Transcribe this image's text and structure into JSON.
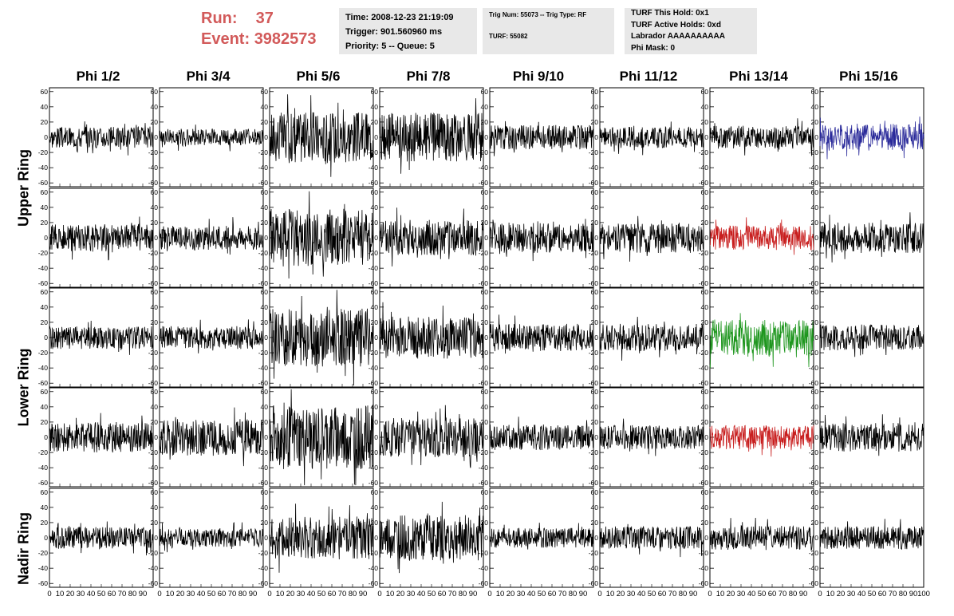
{
  "header": {
    "run_label": "Run:",
    "run_value": "37",
    "event_label": "Event:",
    "event_value": "3982573",
    "info1": [
      "Time: 2008-12-23 21:19:09",
      "Trigger: 901.560960 ms",
      "Priority: 5 -- Queue: 5"
    ],
    "info2": [
      "Trig Num: 55073 -- Trig Type: RF",
      "TURF: 55082"
    ],
    "info3": [
      "TURF This Hold: 0x1",
      "TURF Active Holds: 0xd",
      "Labrador AAAAAAAAAA",
      "Phi Mask: 0"
    ],
    "run_color": "#d25a5a",
    "info_bg": "#e8e8e8"
  },
  "columns": [
    "Phi 1/2",
    "Phi 3/4",
    "Phi 5/6",
    "Phi 7/8",
    "Phi 9/10",
    "Phi 11/12",
    "Phi 13/14",
    "Phi 15/16"
  ],
  "ring_labels": [
    "Upper Ring",
    "Lower Ring",
    "Nadir Ring"
  ],
  "chart_data": {
    "type": "line",
    "description_of_grid": "5 rows x 8 columns of waveform panels",
    "xlim": [
      0,
      100
    ],
    "ylim": [
      -65,
      65
    ],
    "y_ticks": [
      -60,
      -40,
      -20,
      0,
      20,
      40,
      60
    ],
    "x_ticks_labels": [
      "0",
      "10",
      "20",
      "30",
      "40",
      "50",
      "60",
      "70",
      "80",
      "90",
      "100"
    ],
    "samples_per_trace": 260,
    "trace_colors": {
      "default": "#000000",
      "blue": "#2a2a9a",
      "red": "#c81e1e",
      "green": "#1e961e"
    },
    "panels": [
      {
        "row": 0,
        "col": 0,
        "amp": 14,
        "color": "default"
      },
      {
        "row": 0,
        "col": 1,
        "amp": 11,
        "color": "default"
      },
      {
        "row": 0,
        "col": 2,
        "amp": 34,
        "color": "default"
      },
      {
        "row": 0,
        "col": 3,
        "amp": 32,
        "color": "default"
      },
      {
        "row": 0,
        "col": 4,
        "amp": 16,
        "color": "default"
      },
      {
        "row": 0,
        "col": 5,
        "amp": 14,
        "color": "default"
      },
      {
        "row": 0,
        "col": 6,
        "amp": 15,
        "color": "default"
      },
      {
        "row": 0,
        "col": 7,
        "amp": 18,
        "color": "blue"
      },
      {
        "row": 1,
        "col": 0,
        "amp": 18,
        "color": "default"
      },
      {
        "row": 1,
        "col": 1,
        "amp": 16,
        "color": "default"
      },
      {
        "row": 1,
        "col": 2,
        "amp": 38,
        "color": "default"
      },
      {
        "row": 1,
        "col": 3,
        "amp": 24,
        "color": "default"
      },
      {
        "row": 1,
        "col": 4,
        "amp": 20,
        "color": "default"
      },
      {
        "row": 1,
        "col": 5,
        "amp": 20,
        "color": "default"
      },
      {
        "row": 1,
        "col": 6,
        "amp": 16,
        "color": "red"
      },
      {
        "row": 1,
        "col": 7,
        "amp": 20,
        "color": "default"
      },
      {
        "row": 2,
        "col": 0,
        "amp": 15,
        "color": "default"
      },
      {
        "row": 2,
        "col": 1,
        "amp": 15,
        "color": "default"
      },
      {
        "row": 2,
        "col": 2,
        "amp": 38,
        "color": "default"
      },
      {
        "row": 2,
        "col": 3,
        "amp": 28,
        "color": "default"
      },
      {
        "row": 2,
        "col": 4,
        "amp": 18,
        "color": "default"
      },
      {
        "row": 2,
        "col": 5,
        "amp": 18,
        "color": "default"
      },
      {
        "row": 2,
        "col": 6,
        "amp": 24,
        "color": "green"
      },
      {
        "row": 2,
        "col": 7,
        "amp": 17,
        "color": "default"
      },
      {
        "row": 3,
        "col": 0,
        "amp": 20,
        "color": "default"
      },
      {
        "row": 3,
        "col": 1,
        "amp": 24,
        "color": "default"
      },
      {
        "row": 3,
        "col": 2,
        "amp": 42,
        "color": "default"
      },
      {
        "row": 3,
        "col": 3,
        "amp": 26,
        "color": "default"
      },
      {
        "row": 3,
        "col": 4,
        "amp": 17,
        "color": "default"
      },
      {
        "row": 3,
        "col": 5,
        "amp": 16,
        "color": "default"
      },
      {
        "row": 3,
        "col": 6,
        "amp": 16,
        "color": "red"
      },
      {
        "row": 3,
        "col": 7,
        "amp": 19,
        "color": "default"
      },
      {
        "row": 4,
        "col": 0,
        "amp": 14,
        "color": "default"
      },
      {
        "row": 4,
        "col": 1,
        "amp": 12,
        "color": "default"
      },
      {
        "row": 4,
        "col": 2,
        "amp": 28,
        "color": "default"
      },
      {
        "row": 4,
        "col": 3,
        "amp": 30,
        "color": "default"
      },
      {
        "row": 4,
        "col": 4,
        "amp": 13,
        "color": "default"
      },
      {
        "row": 4,
        "col": 5,
        "amp": 15,
        "color": "default"
      },
      {
        "row": 4,
        "col": 6,
        "amp": 16,
        "color": "default"
      },
      {
        "row": 4,
        "col": 7,
        "amp": 15,
        "color": "default"
      }
    ]
  }
}
